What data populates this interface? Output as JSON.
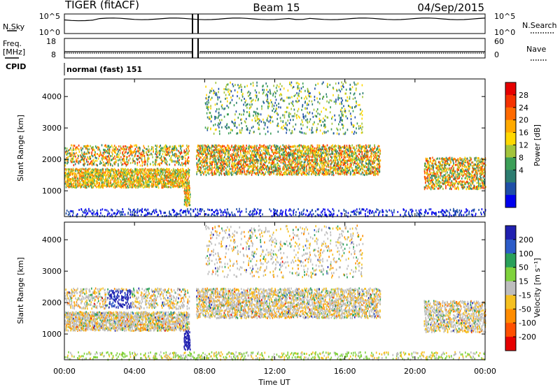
{
  "header": {
    "left": "TIGER (fitACF)",
    "center": "Beam 15",
    "right": "04/Sep/2015"
  },
  "chart_data": {
    "type": "heatmap",
    "x_axis": {
      "label": "Time UT",
      "ticks": [
        "00:00",
        "04:00",
        "08:00",
        "12:00",
        "16:00",
        "20:00",
        "00:00"
      ],
      "range_hours": [
        0,
        24
      ]
    },
    "noise_panel": {
      "left_label": "N.Sky",
      "left_ticks": [
        "10^5",
        "10^0"
      ],
      "right_label": "N.Search",
      "right_ticks": [
        "10^5",
        "10^0"
      ]
    },
    "freq_panel": {
      "left_label_1": "Freq.",
      "left_label_2": "[MHz]",
      "left_ticks": [
        "18",
        "8"
      ],
      "right_label": "Nave",
      "right_ticks": [
        "60",
        "0"
      ]
    },
    "cpid": {
      "label": "CPID",
      "value": "normal (fast) 151"
    },
    "panels": [
      {
        "name": "power",
        "ylabel": "Slant Range [km]",
        "yticks": [
          1000,
          2000,
          3000,
          4000
        ],
        "ylim": [
          180,
          4560
        ],
        "colorbar": {
          "label": "Power [dB]",
          "ticks": [
            "28",
            "24",
            "20",
            "16",
            "12",
            "8",
            "4"
          ],
          "colors": [
            "#e60000",
            "#f53200",
            "#ff6a00",
            "#ffaa00",
            "#ffd800",
            "#a3c43c",
            "#3c9f58",
            "#2c7c70",
            "#1f4fa8",
            "#0000ee"
          ]
        }
      },
      {
        "name": "velocity",
        "ylabel": "Slant Range [km]",
        "yticks": [
          1000,
          2000,
          3000,
          4000
        ],
        "ylim": [
          180,
          4560
        ],
        "colorbar": {
          "label": "Velocity [m s⁻¹]",
          "ticks": [
            "200",
            "100",
            "50",
            "15",
            "-15",
            "-50",
            "-100",
            "-200"
          ],
          "colors": [
            "#2020b0",
            "#2d5cc8",
            "#2aa05a",
            "#7fd23c",
            "#bdbdbd",
            "#f5c020",
            "#ff8c00",
            "#ff5000",
            "#e60000"
          ]
        }
      }
    ],
    "scatter_bands": [
      {
        "t0": 0.0,
        "t1": 7.1,
        "r0": 1100,
        "r1": 1700,
        "density": 0.75
      },
      {
        "t0": 0.0,
        "t1": 7.1,
        "r0": 1800,
        "r1": 2450,
        "density": 0.35
      },
      {
        "t0": 7.5,
        "t1": 18.0,
        "r0": 1500,
        "r1": 2450,
        "density": 0.55
      },
      {
        "t0": 8.0,
        "t1": 17.0,
        "r0": 2800,
        "r1": 4450,
        "density": 0.12
      },
      {
        "t0": 20.5,
        "t1": 24.0,
        "r0": 1050,
        "r1": 2050,
        "density": 0.5
      },
      {
        "t0": 0.0,
        "t1": 24.0,
        "r0": 180,
        "r1": 420,
        "density": 0.25
      },
      {
        "t0": 6.8,
        "t1": 7.15,
        "r0": 500,
        "r1": 1100,
        "density": 0.8
      }
    ]
  }
}
